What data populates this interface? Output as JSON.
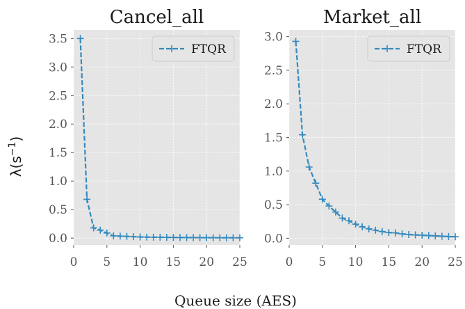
{
  "figure": {
    "xlabel": "Queue size (AES)",
    "ylabel": "λ(s",
    "ylabel_sup": "−1",
    "ylabel_close": ")"
  },
  "colors": {
    "series": "#348abd",
    "panel_bg": "#e5e5e5"
  },
  "chart_data": [
    {
      "type": "line",
      "title": "Cancel_all",
      "xlim": [
        0,
        25
      ],
      "ylim": [
        -0.12,
        3.65
      ],
      "xticks": [
        0,
        5,
        10,
        15,
        20,
        25
      ],
      "xtick_labels": [
        "0",
        "5",
        "10",
        "15",
        "20",
        "25"
      ],
      "yticks": [
        0,
        0.5,
        1,
        1.5,
        2,
        2.5,
        3,
        3.5
      ],
      "ytick_labels": [
        "0.0",
        "0.5",
        "1.0",
        "1.5",
        "2.0",
        "2.5",
        "3.0",
        "3.5"
      ],
      "grid": true,
      "legend": "top-right",
      "series": [
        {
          "name": "FTQR",
          "x": [
            1,
            2,
            3,
            4,
            5,
            6,
            7,
            8,
            9,
            10,
            11,
            12,
            13,
            14,
            15,
            16,
            17,
            18,
            19,
            20,
            21,
            22,
            23,
            24,
            25
          ],
          "y": [
            3.5,
            0.68,
            0.18,
            0.14,
            0.09,
            0.04,
            0.035,
            0.03,
            0.025,
            0.02,
            0.018,
            0.016,
            0.015,
            0.013,
            0.012,
            0.011,
            0.01,
            0.01,
            0.009,
            0.008,
            0.008,
            0.007,
            0.007,
            0.006,
            0.006
          ]
        }
      ]
    },
    {
      "type": "line",
      "title": "Market_all",
      "xlim": [
        0,
        25
      ],
      "ylim": [
        -0.1,
        3.1
      ],
      "xticks": [
        0,
        5,
        10,
        15,
        20,
        25
      ],
      "xtick_labels": [
        "0",
        "5",
        "10",
        "15",
        "20",
        "25"
      ],
      "yticks": [
        0,
        0.5,
        1,
        1.5,
        2,
        2.5,
        3
      ],
      "ytick_labels": [
        "0.0",
        "0.5",
        "1.0",
        "1.5",
        "2.0",
        "2.5",
        "3.0"
      ],
      "grid": true,
      "legend": "top-right",
      "series": [
        {
          "name": "FTQR",
          "x": [
            1,
            2,
            3,
            4,
            5,
            6,
            7,
            8,
            9,
            10,
            11,
            12,
            13,
            14,
            15,
            16,
            17,
            18,
            19,
            20,
            21,
            22,
            23,
            24,
            25
          ],
          "y": [
            2.93,
            1.54,
            1.06,
            0.82,
            0.58,
            0.48,
            0.39,
            0.3,
            0.26,
            0.21,
            0.17,
            0.14,
            0.12,
            0.1,
            0.085,
            0.08,
            0.065,
            0.055,
            0.05,
            0.045,
            0.04,
            0.035,
            0.03,
            0.025,
            0.022
          ]
        }
      ]
    }
  ]
}
